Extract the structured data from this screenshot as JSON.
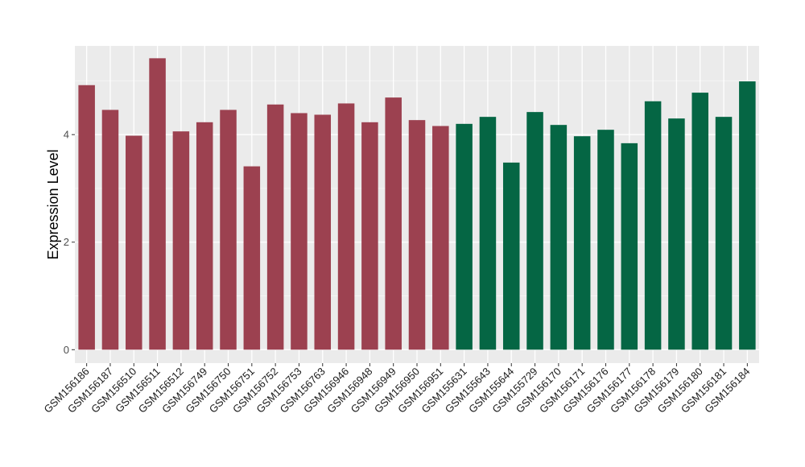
{
  "chart_data": {
    "type": "bar",
    "title": "",
    "xlabel": "",
    "ylabel": "Expression Level",
    "ylim": [
      -0.25,
      5.65
    ],
    "yticks": [
      0,
      2,
      4
    ],
    "grid": true,
    "legend": "none",
    "categories": [
      "GSM156186",
      "GSM156187",
      "GSM156510",
      "GSM156511",
      "GSM156512",
      "GSM156749",
      "GSM156750",
      "GSM156751",
      "GSM156752",
      "GSM156753",
      "GSM156763",
      "GSM156946",
      "GSM156948",
      "GSM156949",
      "GSM156950",
      "GSM156951",
      "GSM155631",
      "GSM155643",
      "GSM155644",
      "GSM155729",
      "GSM156170",
      "GSM156171",
      "GSM156176",
      "GSM156177",
      "GSM156178",
      "GSM156179",
      "GSM156180",
      "GSM156181",
      "GSM156184"
    ],
    "values": [
      4.92,
      4.46,
      3.98,
      5.42,
      4.06,
      4.23,
      4.46,
      3.41,
      4.56,
      4.4,
      4.37,
      4.58,
      4.23,
      4.69,
      4.27,
      4.16,
      4.2,
      4.33,
      3.48,
      4.42,
      4.18,
      3.97,
      4.09,
      3.84,
      4.62,
      4.3,
      4.78,
      4.33,
      4.99
    ],
    "groups": [
      "group1",
      "group1",
      "group1",
      "group1",
      "group1",
      "group1",
      "group1",
      "group1",
      "group1",
      "group1",
      "group1",
      "group1",
      "group1",
      "group1",
      "group1",
      "group1",
      "group2",
      "group2",
      "group2",
      "group2",
      "group2",
      "group2",
      "group2",
      "group2",
      "group2",
      "group2",
      "group2",
      "group2",
      "group2"
    ],
    "colors": {
      "group1": "#9c4150",
      "group2": "#056644",
      "panel": "#ebebeb",
      "grid_major": "#ffffff",
      "grid_minor": "#f5f5f5",
      "tick": "#333333"
    }
  }
}
